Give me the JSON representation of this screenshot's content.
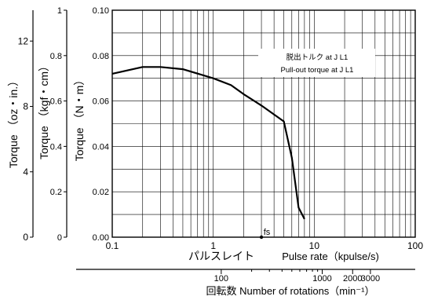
{
  "chart_data": {
    "type": "line",
    "title": "",
    "x_axis": {
      "scale": "log",
      "range": [
        0.1,
        100
      ],
      "tick_labels": [
        "0.1",
        "1",
        "10",
        "100"
      ],
      "label_jp": "パルスレイト",
      "label_en": "Pulse rate（kpulse/s)",
      "marker": "fs"
    },
    "x2_axis": {
      "scale": "log",
      "tick_labels": [
        "100",
        "1000",
        "2000",
        "3000"
      ],
      "label": "回転数 Number of rotations（min⁻¹）"
    },
    "y_axis_nm": {
      "label": "Torque （N・m）",
      "range": [
        0,
        0.1
      ],
      "tick_labels": [
        "0.00",
        "0.02",
        "0.04",
        "0.06",
        "0.08",
        "0.10"
      ]
    },
    "y_axis_kgf": {
      "label": "Torque （kgf・cm）",
      "range": [
        0,
        1
      ],
      "tick_labels": [
        "0",
        "0.2",
        "0.4",
        "0.6",
        "0.8",
        "1"
      ]
    },
    "y_axis_ozin": {
      "label": "Torque （oz・in.）",
      "tick_labels": [
        "0",
        "4",
        "8",
        "12"
      ]
    },
    "legend": [
      "脱出トルク at J L1",
      "Pull-out torque at J L1"
    ],
    "series": [
      {
        "x": [
          0.1,
          0.2,
          0.3,
          0.5,
          1.0,
          1.5,
          2.0,
          3.0,
          5.0,
          6.0,
          7.0,
          8.0
        ],
        "y": [
          0.072,
          0.075,
          0.075,
          0.074,
          0.07,
          0.067,
          0.063,
          0.058,
          0.051,
          0.035,
          0.013,
          0.008
        ]
      }
    ]
  }
}
